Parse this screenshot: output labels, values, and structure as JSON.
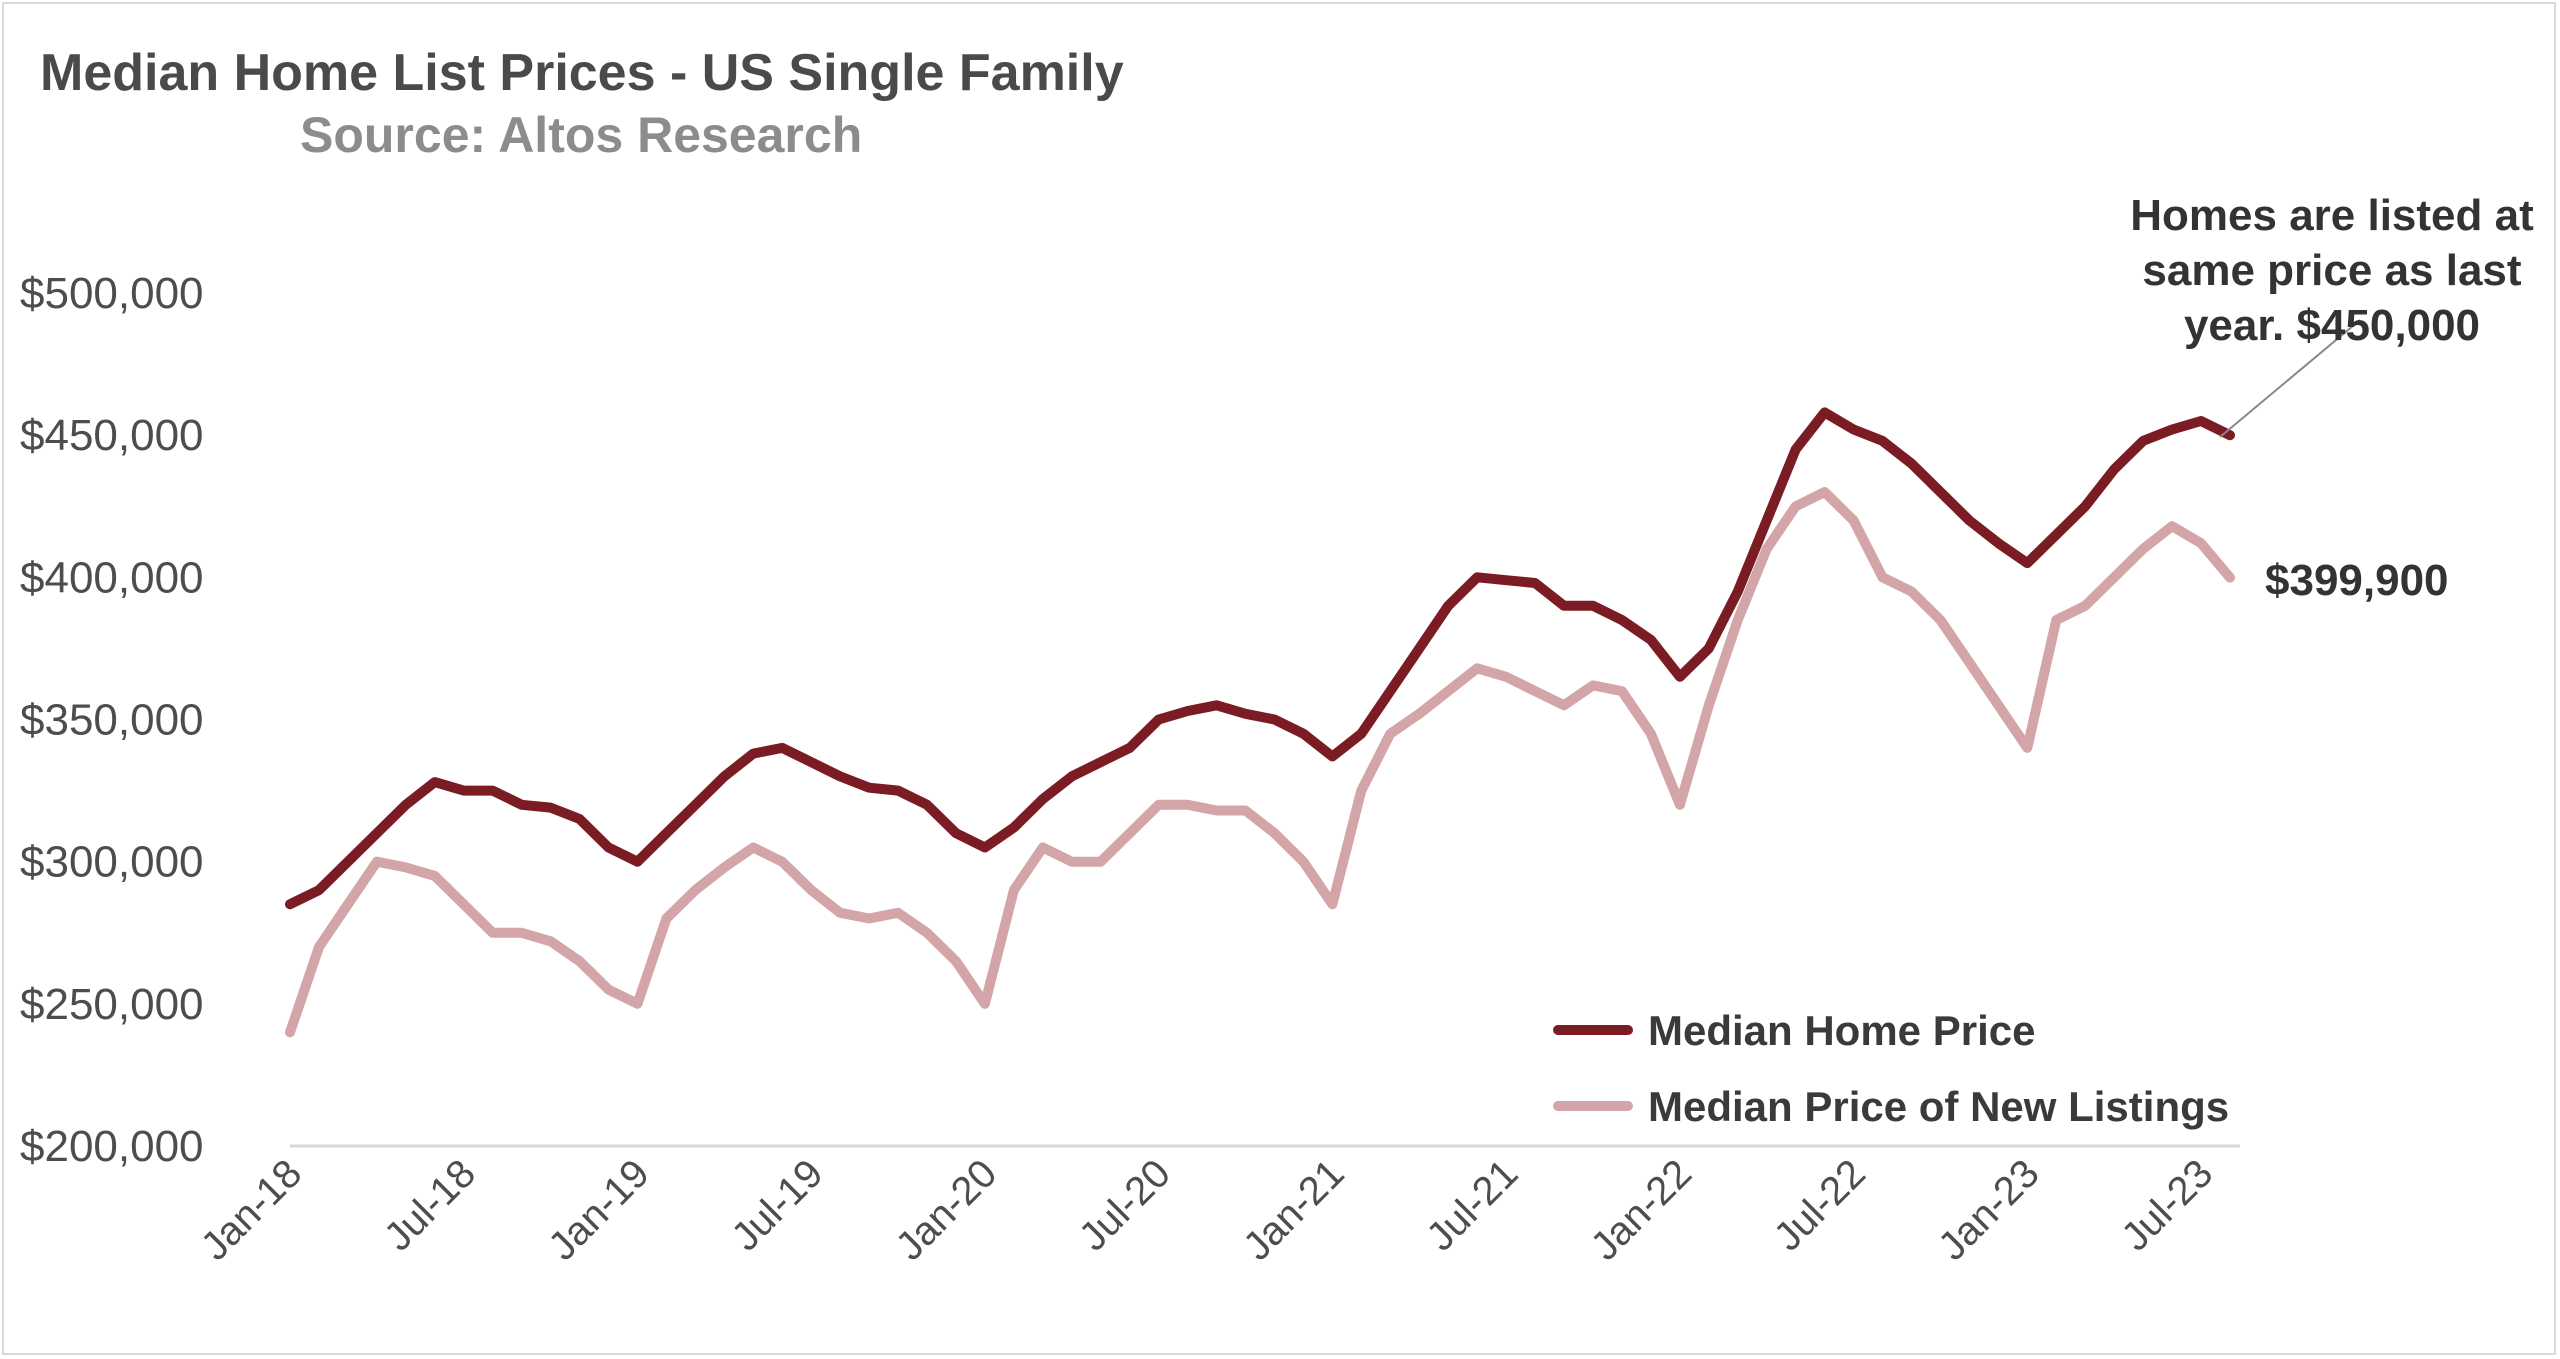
{
  "chart_data": {
    "type": "line",
    "title": "Median Home List Prices - US Single Family",
    "subtitle": "Source: Altos Research",
    "ylim": [
      200000,
      500000
    ],
    "y_ticks": [
      "$200,000",
      "$250,000",
      "$300,000",
      "$350,000",
      "$400,000",
      "$450,000",
      "$500,000"
    ],
    "x_ticks": [
      "Jan-18",
      "Jul-18",
      "Jan-19",
      "Jul-19",
      "Jan-20",
      "Jul-20",
      "Jan-21",
      "Jul-21",
      "Jan-22",
      "Jul-22",
      "Jan-23",
      "Jul-23"
    ],
    "grid": false,
    "legend_position": "bottom-right",
    "x": [
      "Jan-18",
      "Feb-18",
      "Mar-18",
      "Apr-18",
      "May-18",
      "Jun-18",
      "Jul-18",
      "Aug-18",
      "Sep-18",
      "Oct-18",
      "Nov-18",
      "Dec-18",
      "Jan-19",
      "Feb-19",
      "Mar-19",
      "Apr-19",
      "May-19",
      "Jun-19",
      "Jul-19",
      "Aug-19",
      "Sep-19",
      "Oct-19",
      "Nov-19",
      "Dec-19",
      "Jan-20",
      "Feb-20",
      "Mar-20",
      "Apr-20",
      "May-20",
      "Jun-20",
      "Jul-20",
      "Aug-20",
      "Sep-20",
      "Oct-20",
      "Nov-20",
      "Dec-20",
      "Jan-21",
      "Feb-21",
      "Mar-21",
      "Apr-21",
      "May-21",
      "Jun-21",
      "Jul-21",
      "Aug-21",
      "Sep-21",
      "Oct-21",
      "Nov-21",
      "Dec-21",
      "Jan-22",
      "Feb-22",
      "Mar-22",
      "Apr-22",
      "May-22",
      "Jun-22",
      "Jul-22",
      "Aug-22",
      "Sep-22",
      "Oct-22",
      "Nov-22",
      "Dec-22",
      "Jan-23",
      "Feb-23",
      "Mar-23",
      "Apr-23",
      "May-23",
      "Jun-23",
      "Jul-23",
      "Aug-23"
    ],
    "series": [
      {
        "name": "Median Home Price",
        "color": "#7b1c24",
        "values": [
          285000,
          290000,
          300000,
          310000,
          320000,
          328000,
          325000,
          325000,
          320000,
          319000,
          315000,
          305000,
          300000,
          310000,
          320000,
          330000,
          338000,
          340000,
          335000,
          330000,
          326000,
          325000,
          320000,
          310000,
          305000,
          312000,
          322000,
          330000,
          335000,
          340000,
          350000,
          353000,
          355000,
          352000,
          350000,
          345000,
          337000,
          345000,
          360000,
          375000,
          390000,
          400000,
          399000,
          398000,
          390000,
          390000,
          385000,
          378000,
          365000,
          375000,
          395000,
          420000,
          445000,
          458000,
          452000,
          448000,
          440000,
          430000,
          420000,
          412000,
          405000,
          415000,
          425000,
          438000,
          448000,
          452000,
          455000,
          450000
        ]
      },
      {
        "name": "Median Price of New Listings",
        "color": "#d4a5a8",
        "values": [
          240000,
          270000,
          285000,
          300000,
          298000,
          295000,
          285000,
          275000,
          275000,
          272000,
          265000,
          255000,
          250000,
          280000,
          290000,
          298000,
          305000,
          300000,
          290000,
          282000,
          280000,
          282000,
          275000,
          265000,
          250000,
          290000,
          305000,
          300000,
          300000,
          310000,
          320000,
          320000,
          318000,
          318000,
          310000,
          300000,
          285000,
          325000,
          345000,
          352000,
          360000,
          368000,
          365000,
          360000,
          355000,
          362000,
          360000,
          345000,
          320000,
          355000,
          385000,
          410000,
          425000,
          430000,
          420000,
          400000,
          395000,
          385000,
          370000,
          355000,
          340000,
          385000,
          390000,
          400000,
          410000,
          418000,
          412000,
          399900
        ]
      }
    ],
    "annotations": {
      "top_lines": [
        "Homes are listed at",
        "same price as last",
        "year. $450,000"
      ],
      "bottom_value": "$399,900"
    }
  }
}
